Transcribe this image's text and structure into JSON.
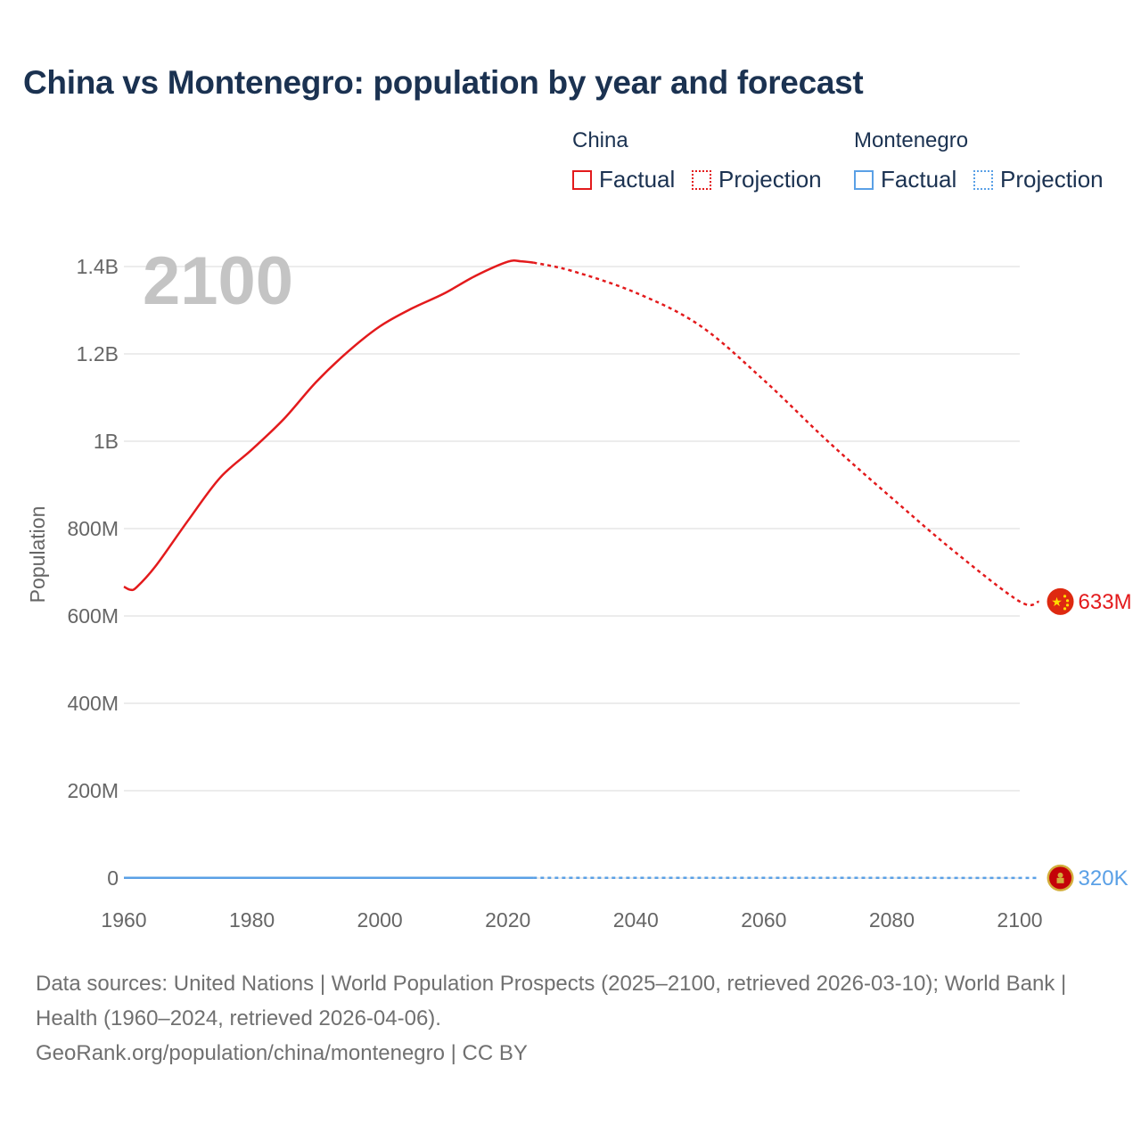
{
  "title": "China vs Montenegro: population by year and forecast",
  "legend": {
    "groups": [
      {
        "name": "China",
        "factual_label": "Factual",
        "projection_label": "Projection"
      },
      {
        "name": "Montenegro",
        "factual_label": "Factual",
        "projection_label": "Projection"
      }
    ]
  },
  "colors": {
    "china": "#e31a1c",
    "montenegro": "#5aa0e6",
    "grid": "#e6e6e6",
    "text": "#1b3251"
  },
  "footer": {
    "sources": "Data sources: United Nations | World Population Prospects (2025–2100, retrieved 2026-03-10); World Bank | Health (1960–2024, retrieved 2026-04-06).",
    "url": "GeoRank.org/population/china/montenegro | CC BY"
  },
  "chart_data": {
    "type": "line",
    "title": "China vs Montenegro: population by year and forecast",
    "xlabel": "",
    "ylabel": "Population",
    "current_year_label": "2100",
    "xlim": [
      1960,
      2103
    ],
    "ylim": [
      0,
      1400000000
    ],
    "x_ticks": [
      1960,
      1980,
      2000,
      2020,
      2040,
      2060,
      2080,
      2100
    ],
    "x_tick_labels": [
      "1960",
      "1980",
      "2000",
      "2020",
      "2040",
      "2060",
      "2080",
      "2100"
    ],
    "y_ticks": [
      0,
      200000000,
      400000000,
      600000000,
      800000000,
      1000000000,
      1200000000,
      1400000000
    ],
    "y_tick_labels": [
      "0",
      "200M",
      "400M",
      "600M",
      "800M",
      "1B",
      "1.2B",
      "1.4B"
    ],
    "grid": true,
    "legend_position": "top-right",
    "series": [
      {
        "name": "China",
        "color": "#e31a1c",
        "end_label": "633M",
        "flag": "china-flag",
        "factual": {
          "x": [
            1960,
            1961,
            1962,
            1965,
            1970,
            1975,
            1980,
            1985,
            1990,
            1995,
            2000,
            2005,
            2010,
            2015,
            2020,
            2022,
            2024
          ],
          "y": [
            667000000,
            660000000,
            666000000,
            715000000,
            818000000,
            916000000,
            981000000,
            1051000000,
            1135000000,
            1205000000,
            1263000000,
            1304000000,
            1338000000,
            1379000000,
            1411000000,
            1412000000,
            1409000000
          ]
        },
        "projection": {
          "x": [
            2024,
            2030,
            2040,
            2050,
            2060,
            2070,
            2080,
            2090,
            2100,
            2103
          ],
          "y": [
            1409000000,
            1390000000,
            1340000000,
            1265000000,
            1140000000,
            1000000000,
            870000000,
            745000000,
            633000000,
            633000000
          ]
        }
      },
      {
        "name": "Montenegro",
        "color": "#5aa0e6",
        "end_label": "320K",
        "flag": "montenegro-flag",
        "factual": {
          "x": [
            1960,
            1980,
            2000,
            2024
          ],
          "y": [
            480000,
            580000,
            610000,
            623000
          ]
        },
        "projection": {
          "x": [
            2024,
            2050,
            2080,
            2100,
            2103
          ],
          "y": [
            623000,
            560000,
            420000,
            320000,
            320000
          ]
        }
      }
    ]
  }
}
